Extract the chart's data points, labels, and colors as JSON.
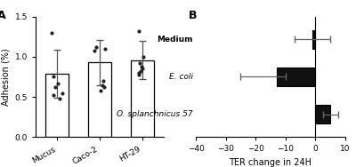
{
  "panel_A": {
    "categories": [
      "Mucus",
      "Caco-2",
      "HT-29"
    ],
    "means": [
      0.79,
      0.93,
      0.96
    ],
    "errors": [
      0.3,
      0.28,
      0.24
    ],
    "dots": [
      [
        0.62,
        0.55,
        0.48,
        0.67,
        0.75,
        0.52,
        1.3
      ],
      [
        0.62,
        0.58,
        0.65,
        1.08,
        1.1,
        0.7,
        1.12
      ],
      [
        0.78,
        0.8,
        0.82,
        0.85,
        0.88,
        0.92,
        1.0,
        1.32
      ]
    ],
    "ylabel": "Adhesion (%)",
    "ylim": [
      0,
      1.5
    ],
    "yticks": [
      0.0,
      0.5,
      1.0,
      1.5
    ],
    "bar_color": "#ffffff",
    "bar_edgecolor": "#000000",
    "dot_color": "#222222",
    "label": "A"
  },
  "panel_B": {
    "categories": [
      "O. splanchnicus 57",
      "E. coli",
      "Medium"
    ],
    "means": [
      5.0,
      -13.0,
      -1.0
    ],
    "errors_plus": [
      2.5,
      3.0,
      6.0
    ],
    "errors_minus": [
      2.5,
      12.0,
      6.0
    ],
    "bar_color": "#111111",
    "bar_edgecolor": "#000000",
    "xlabel": "TER change in 24H",
    "xlim": [
      -40,
      10
    ],
    "xticks": [
      -40,
      -30,
      -20,
      -10,
      0,
      10
    ],
    "label": "B",
    "italic_labels": [
      true,
      true,
      false
    ],
    "bold_labels": [
      false,
      false,
      true
    ]
  }
}
